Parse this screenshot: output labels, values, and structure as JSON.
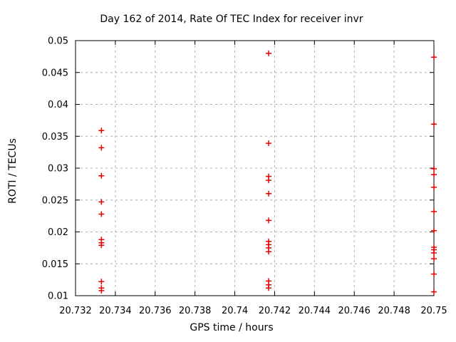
{
  "window": {
    "background": "#ffffff"
  },
  "chart_data": {
    "type": "scatter",
    "title": "Day 162 of 2014, Rate Of TEC Index for receiver invr",
    "xlabel": "GPS time / hours",
    "ylabel": "ROTI / TECUs",
    "xlim": [
      20.732,
      20.75
    ],
    "ylim": [
      0.01,
      0.05
    ],
    "grid": true,
    "legend_position": "none",
    "marker": "plus",
    "marker_color": "#e60000",
    "grid_color": "#b0b0b0",
    "axis_color": "#000000",
    "xticks": [
      {
        "value": 20.732,
        "label": "20.732"
      },
      {
        "value": 20.734,
        "label": "20.734"
      },
      {
        "value": 20.736,
        "label": "20.736"
      },
      {
        "value": 20.738,
        "label": "20.738"
      },
      {
        "value": 20.74,
        "label": "20.74"
      },
      {
        "value": 20.742,
        "label": "20.742"
      },
      {
        "value": 20.744,
        "label": "20.744"
      },
      {
        "value": 20.746,
        "label": "20.746"
      },
      {
        "value": 20.748,
        "label": "20.748"
      },
      {
        "value": 20.75,
        "label": "20.75"
      }
    ],
    "yticks": [
      {
        "value": 0.01,
        "label": "0.01"
      },
      {
        "value": 0.015,
        "label": "0.015"
      },
      {
        "value": 0.02,
        "label": "0.02"
      },
      {
        "value": 0.025,
        "label": "0.025"
      },
      {
        "value": 0.03,
        "label": "0.03"
      },
      {
        "value": 0.035,
        "label": "0.035"
      },
      {
        "value": 0.04,
        "label": "0.04"
      },
      {
        "value": 0.045,
        "label": "0.045"
      },
      {
        "value": 0.05,
        "label": "0.05"
      }
    ],
    "series": [
      {
        "name": "ROTI",
        "points": [
          [
            20.7333,
            0.0359
          ],
          [
            20.7333,
            0.0332
          ],
          [
            20.7333,
            0.0288
          ],
          [
            20.7333,
            0.0247
          ],
          [
            20.7333,
            0.0228
          ],
          [
            20.7333,
            0.0188
          ],
          [
            20.7333,
            0.0183
          ],
          [
            20.7333,
            0.0179
          ],
          [
            20.7333,
            0.0122
          ],
          [
            20.7333,
            0.0112
          ],
          [
            20.7333,
            0.0108
          ],
          [
            20.7417,
            0.048
          ],
          [
            20.7417,
            0.0339
          ],
          [
            20.7417,
            0.0287
          ],
          [
            20.7417,
            0.0281
          ],
          [
            20.7417,
            0.026
          ],
          [
            20.7417,
            0.0218
          ],
          [
            20.7417,
            0.0185
          ],
          [
            20.7417,
            0.018
          ],
          [
            20.7417,
            0.0175
          ],
          [
            20.7417,
            0.0169
          ],
          [
            20.7417,
            0.0123
          ],
          [
            20.7417,
            0.0117
          ],
          [
            20.7417,
            0.0112
          ],
          [
            20.75,
            0.0474
          ],
          [
            20.75,
            0.0369
          ],
          [
            20.75,
            0.0299
          ],
          [
            20.75,
            0.029
          ],
          [
            20.75,
            0.027
          ],
          [
            20.75,
            0.0232
          ],
          [
            20.75,
            0.0202
          ],
          [
            20.75,
            0.0176
          ],
          [
            20.75,
            0.0172
          ],
          [
            20.75,
            0.0167
          ],
          [
            20.75,
            0.0158
          ],
          [
            20.75,
            0.0134
          ],
          [
            20.75,
            0.0106
          ]
        ]
      }
    ]
  }
}
